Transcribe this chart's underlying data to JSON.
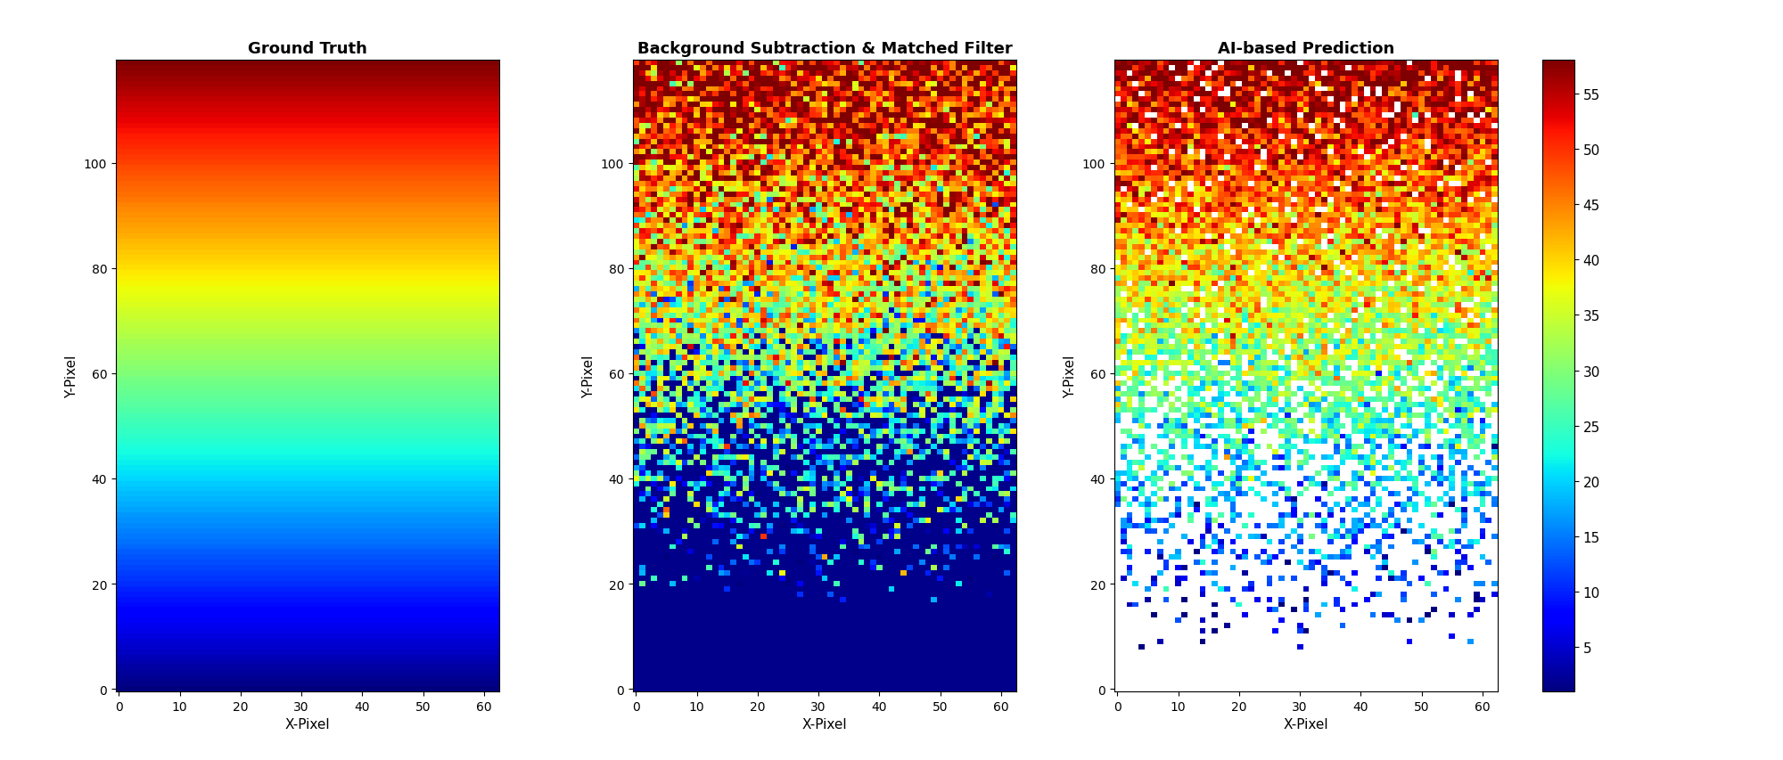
{
  "title1": "Ground Truth",
  "title2": "Background Subtraction & Matched Filter",
  "title3": "AI-based Prediction",
  "xlabel": "X-Pixel",
  "ylabel": "Y-Pixel",
  "nx": 63,
  "ny": 120,
  "vmin": 1,
  "vmax": 58,
  "colorbar_ticks": [
    5,
    10,
    15,
    20,
    25,
    30,
    35,
    40,
    45,
    50,
    55
  ],
  "xticks": [
    0,
    10,
    20,
    30,
    40,
    50,
    60
  ],
  "yticks": [
    0,
    20,
    40,
    60,
    80,
    100
  ],
  "background_color": "white",
  "cmap": "jet",
  "nan_color_mid": "#00008B",
  "nan_color_ai": "white"
}
